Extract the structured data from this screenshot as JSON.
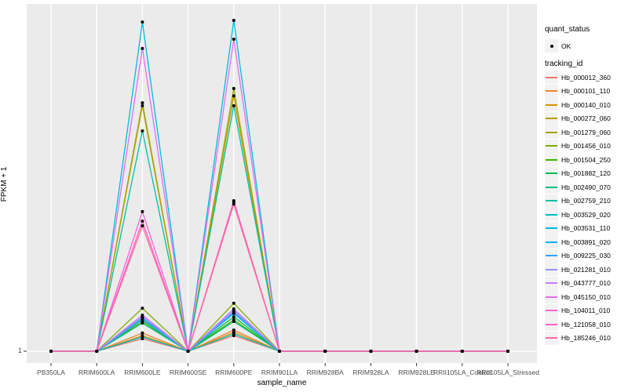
{
  "figure": {
    "panel_bg": "#EBEBEB",
    "grid_color": "#FFFFFF",
    "tick_color": "#333333",
    "axis_text_color": "#4D4D4D",
    "point_color": "#000000"
  },
  "axes": {
    "x_title": "sample_name",
    "y_title": "FPKM + 1",
    "y_tick_label": "1"
  },
  "legend": {
    "quant_status": {
      "title": "quant_status",
      "items": [
        {
          "label": "OK",
          "symbol": "point"
        }
      ]
    },
    "tracking_id": {
      "title": "tracking_id"
    }
  },
  "chart_data": {
    "type": "line",
    "title": "",
    "xlabel": "sample_name",
    "ylabel": "FPKM + 1",
    "legend_position": "right",
    "grid": true,
    "y_axis": {
      "visible_tick_labels": [
        "1"
      ],
      "baseline_value": 1
    },
    "categories": [
      "PB350LA",
      "RRIM600LA",
      "RRIM600LE",
      "RRIM600SE",
      "RRIM600PE",
      "RRIM901LA",
      "RRIM928BA",
      "RRIM928LA",
      "RRIM928LE",
      "RRII105LA_Control",
      "RRII105LA_Stressed"
    ],
    "value_unit": "normalized peak height above baseline 1 (0 = FPKM+1 of 1, 1 = tallest peak)",
    "series": [
      {
        "name": "Hb_000012_360",
        "color": "#F8766D",
        "values": [
          0,
          0,
          0.038,
          0,
          0.047,
          0,
          0,
          0,
          0,
          0,
          0
        ]
      },
      {
        "name": "Hb_000101_110",
        "color": "#EA8331",
        "values": [
          0,
          0,
          0.055,
          0,
          0.064,
          0,
          0,
          0,
          0,
          0,
          0
        ]
      },
      {
        "name": "Hb_000140_010",
        "color": "#D89000",
        "values": [
          0,
          0,
          0.047,
          0,
          0.057,
          0,
          0,
          0,
          0,
          0,
          0
        ]
      },
      {
        "name": "Hb_000272_060",
        "color": "#C09B00",
        "values": [
          0,
          0,
          0.742,
          0,
          0.772,
          0,
          0,
          0,
          0,
          0,
          0
        ]
      },
      {
        "name": "Hb_001279_060",
        "color": "#A3A500",
        "values": [
          0,
          0,
          0.751,
          0,
          0.794,
          0,
          0,
          0,
          0,
          0,
          0
        ]
      },
      {
        "name": "Hb_001456_010",
        "color": "#7CAE00",
        "values": [
          0,
          0,
          0.13,
          0,
          0.145,
          0,
          0,
          0,
          0,
          0,
          0
        ]
      },
      {
        "name": "Hb_001504_250",
        "color": "#39B600",
        "values": [
          0,
          0,
          0.09,
          0,
          0.095,
          0,
          0,
          0,
          0,
          0,
          0
        ]
      },
      {
        "name": "Hb_001882_120",
        "color": "#00BB4E",
        "values": [
          0,
          0,
          0.097,
          0,
          0.104,
          0,
          0,
          0,
          0,
          0,
          0
        ]
      },
      {
        "name": "Hb_002490_070",
        "color": "#00BF7D",
        "values": [
          0,
          0,
          0.085,
          0,
          0.09,
          0,
          0,
          0,
          0,
          0,
          0
        ]
      },
      {
        "name": "Hb_002759_210",
        "color": "#00C1A3",
        "values": [
          0,
          0,
          0.666,
          0,
          0.742,
          0,
          0,
          0,
          0,
          0,
          0
        ]
      },
      {
        "name": "Hb_003529_020",
        "color": "#00BFC4",
        "values": [
          0,
          0,
          0.043,
          0,
          0.052,
          0,
          0,
          0,
          0,
          0,
          0
        ]
      },
      {
        "name": "Hb_003531_110",
        "color": "#00BAE0",
        "values": [
          0,
          0,
          0.995,
          0,
          1.0,
          0,
          0,
          0,
          0,
          0,
          0
        ]
      },
      {
        "name": "Hb_003891_020",
        "color": "#00B0F6",
        "values": [
          0,
          0,
          0.102,
          0,
          0.114,
          0,
          0,
          0,
          0,
          0,
          0
        ]
      },
      {
        "name": "Hb_009225_030",
        "color": "#35A2FF",
        "values": [
          0,
          0,
          0.095,
          0,
          0.118,
          0,
          0,
          0,
          0,
          0,
          0
        ]
      },
      {
        "name": "Hb_021281_010",
        "color": "#9590FF",
        "values": [
          0,
          0,
          0.104,
          0,
          0.123,
          0,
          0,
          0,
          0,
          0,
          0
        ]
      },
      {
        "name": "Hb_043777_010",
        "color": "#C77CFF",
        "values": [
          0,
          0,
          0.109,
          0,
          0.128,
          0,
          0,
          0,
          0,
          0,
          0
        ]
      },
      {
        "name": "Hb_045150_010",
        "color": "#E76BF3",
        "values": [
          0,
          0,
          0.915,
          0,
          0.943,
          0,
          0,
          0,
          0,
          0,
          0
        ]
      },
      {
        "name": "Hb_104011_010",
        "color": "#FA62DB",
        "values": [
          0,
          0,
          0.422,
          0,
          0.455,
          0,
          0,
          0,
          0,
          0,
          0
        ]
      },
      {
        "name": "Hb_121058_010",
        "color": "#FF61CC",
        "values": [
          0,
          0,
          0.393,
          0,
          0.45,
          0,
          0,
          0,
          0,
          0,
          0
        ]
      },
      {
        "name": "Hb_185246_010",
        "color": "#FF6A98",
        "values": [
          0,
          0,
          0.379,
          0,
          0.445,
          0,
          0,
          0,
          0,
          0,
          0
        ]
      }
    ]
  }
}
